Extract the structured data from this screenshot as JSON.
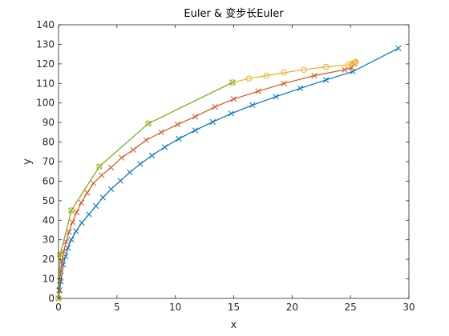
{
  "chart_data": {
    "type": "line",
    "title": "Euler & 变步长Euler",
    "xlabel": "x",
    "ylabel": "y",
    "xlim": [
      0,
      30
    ],
    "ylim": [
      0,
      140
    ],
    "xticks": [
      0,
      5,
      10,
      15,
      20,
      25,
      30
    ],
    "yticks": [
      0,
      10,
      20,
      30,
      40,
      50,
      60,
      70,
      80,
      90,
      100,
      110,
      120,
      130,
      140
    ],
    "grid": false,
    "legend": "none",
    "series": [
      {
        "color": "#0072BD",
        "marker": "x",
        "x": [
          0,
          0.1,
          0.2,
          0.4,
          0.6,
          0.8,
          1.1,
          1.5,
          2.0,
          2.6,
          3.2,
          3.8,
          4.5,
          5.3,
          6.1,
          7.0,
          8.0,
          9.1,
          10.3,
          11.7,
          13.2,
          14.8,
          16.6,
          18.6,
          20.7,
          22.9,
          25.2,
          29.1
        ],
        "y": [
          0,
          4.3,
          8.6,
          17.2,
          21.5,
          25.8,
          30.1,
          34.4,
          38.7,
          43.0,
          47.3,
          51.6,
          55.9,
          60.2,
          64.5,
          68.8,
          73.1,
          77.4,
          81.7,
          86.0,
          90.3,
          94.6,
          98.9,
          103.2,
          107.5,
          111.8,
          116.1,
          128.0
        ]
      },
      {
        "color": "#D95319",
        "marker": "x",
        "x": [
          0,
          0.05,
          0.1,
          0.2,
          0.3,
          0.45,
          0.65,
          0.9,
          1.2,
          1.55,
          1.95,
          2.45,
          3.0,
          3.7,
          4.5,
          5.4,
          6.4,
          7.5,
          8.8,
          10.2,
          11.7,
          13.4,
          15.0,
          17.1,
          19.3,
          21.9,
          24.5,
          25.1,
          25.3
        ],
        "y": [
          0,
          4,
          9,
          14,
          19,
          24,
          29,
          34,
          39,
          44,
          49,
          54,
          59,
          63,
          67,
          72,
          76,
          81,
          85,
          89,
          93,
          98,
          102,
          106,
          110,
          114,
          117,
          118,
          120
        ]
      },
      {
        "color": "#EDB120",
        "marker": "o",
        "x": [
          0,
          0.15,
          1.1,
          3.5,
          7.7,
          14.9,
          16.3,
          17.8,
          19.3,
          21.0,
          22.9,
          24.8,
          25.1,
          25.3,
          25.4,
          25.45
        ],
        "y": [
          0,
          22.5,
          45,
          67.5,
          89.5,
          110.5,
          112.5,
          114,
          115.5,
          117,
          118.5,
          119.5,
          120,
          120.5,
          120.8,
          121
        ]
      },
      {
        "color": "#77AC30",
        "marker": "x",
        "x": [
          0,
          0.15,
          1.1,
          3.5,
          7.7,
          14.9
        ],
        "y": [
          0,
          22.5,
          45,
          67.5,
          89.5,
          110.5
        ]
      }
    ]
  }
}
